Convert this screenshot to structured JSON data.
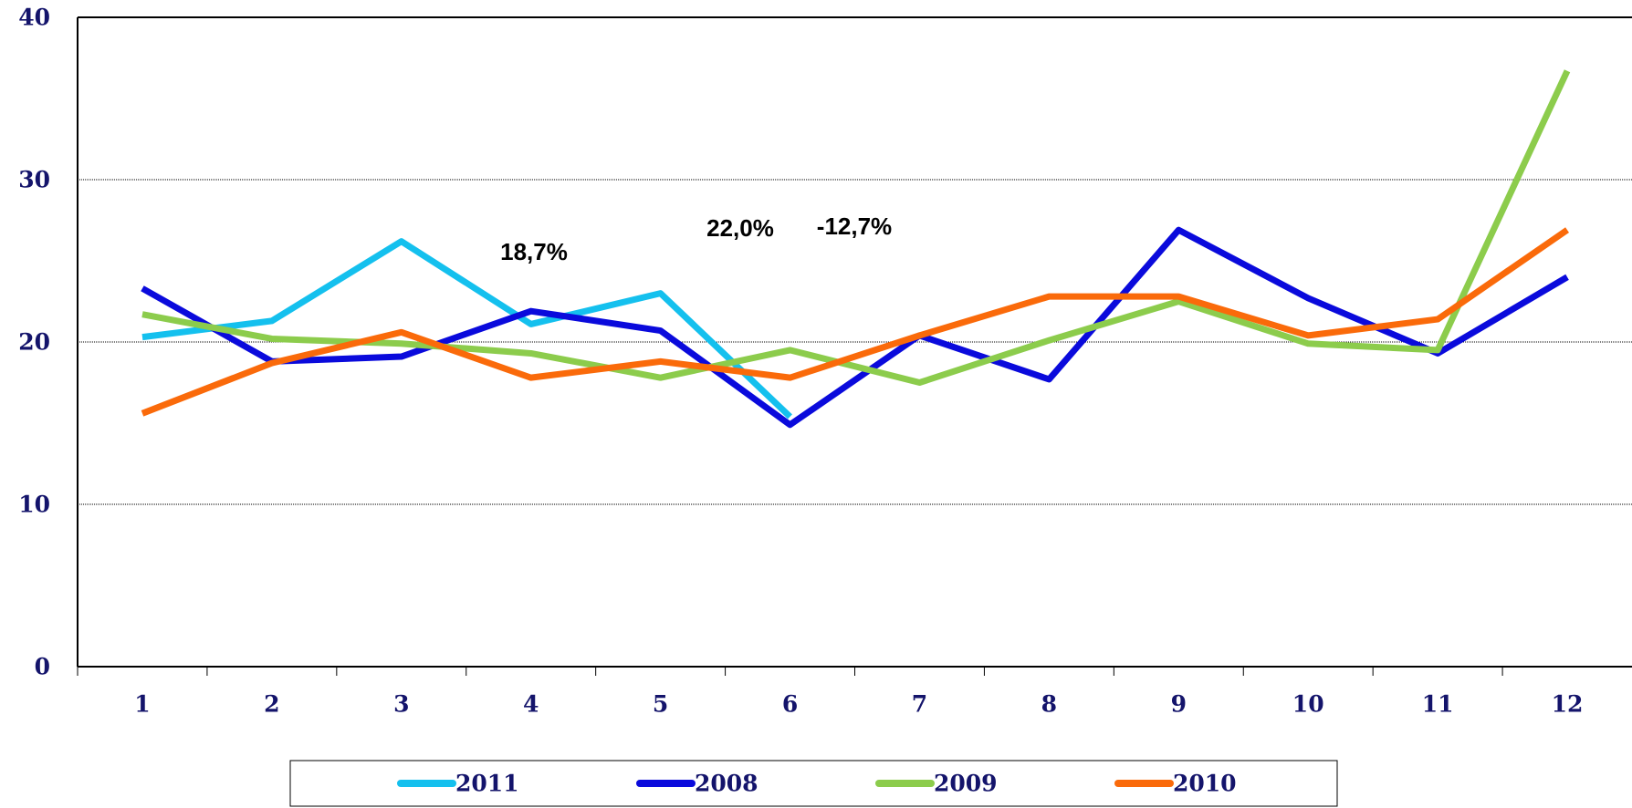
{
  "chart_data": {
    "type": "line",
    "categories": [
      "1",
      "2",
      "3",
      "4",
      "5",
      "6",
      "7",
      "8",
      "9",
      "10",
      "11",
      "12"
    ],
    "series": [
      {
        "name": "2011",
        "color": "#14c0ee",
        "values": [
          20.3,
          21.3,
          26.2,
          21.1,
          23.0,
          15.4,
          null,
          null,
          null,
          null,
          null,
          null
        ]
      },
      {
        "name": "2008",
        "color": "#0a0adc",
        "values": [
          23.3,
          18.8,
          19.1,
          21.9,
          20.7,
          14.9,
          20.4,
          17.7,
          26.9,
          22.7,
          19.3,
          24.0
        ]
      },
      {
        "name": "2009",
        "color": "#8ccc4c",
        "values": [
          21.7,
          20.2,
          19.9,
          19.3,
          17.8,
          19.5,
          17.5,
          20.1,
          22.5,
          19.9,
          19.5,
          36.7
        ]
      },
      {
        "name": "2010",
        "color": "#fa6a0a",
        "values": [
          15.6,
          18.7,
          20.6,
          17.8,
          18.8,
          17.8,
          20.4,
          22.8,
          22.8,
          20.4,
          21.4,
          26.9
        ]
      }
    ],
    "annotations": [
      "18,7%",
      "22,0%",
      "-12,7%"
    ],
    "ylim": [
      0,
      40
    ],
    "yticks": [
      0,
      10,
      20,
      30,
      40
    ],
    "grid": true,
    "legend": "bottom"
  }
}
